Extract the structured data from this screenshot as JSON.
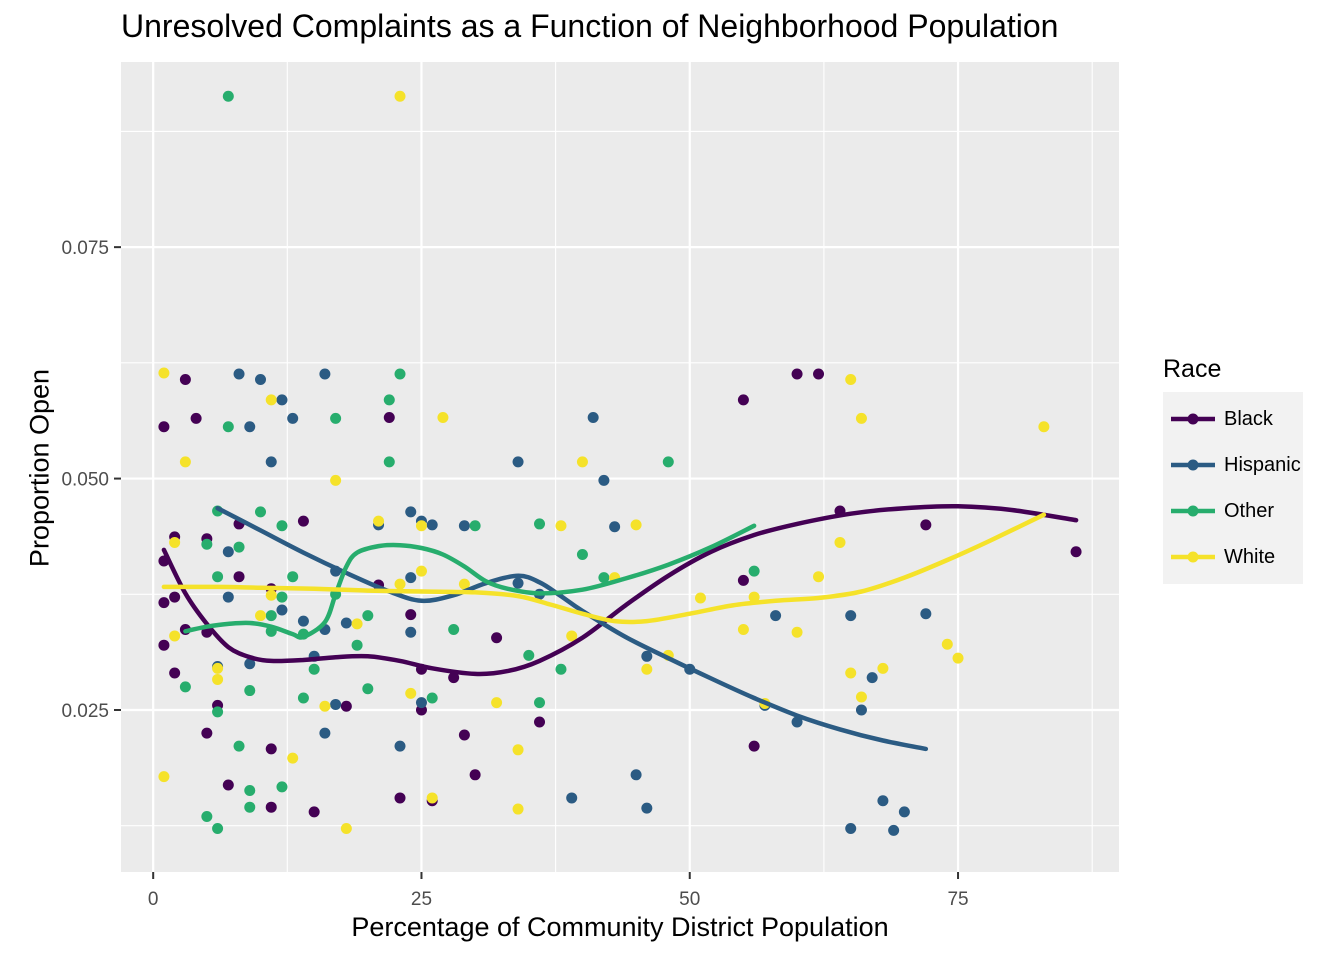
{
  "chart_data": {
    "type": "scatter",
    "title": "Unresolved Complaints as a Function of Neighborhood Population",
    "xlabel": "Percentage of Community District Population",
    "ylabel": "Proportion Open",
    "xlim": [
      -3,
      90
    ],
    "ylim": [
      0.0075,
      0.095
    ],
    "xticks": [
      0,
      25,
      50,
      75
    ],
    "xtick_labels": [
      "0",
      "25",
      "50",
      "75"
    ],
    "yticks": [
      0.025,
      0.05,
      0.075
    ],
    "ytick_labels": [
      "0.025",
      "0.050",
      "0.075"
    ],
    "grid": true,
    "legend": {
      "title": "Race",
      "position": "right"
    },
    "overlay": "smoothed trend line per series",
    "series": [
      {
        "name": "Black",
        "color": "#440154",
        "points": [
          [
            1,
            0.0556
          ],
          [
            1,
            0.0411
          ],
          [
            1,
            0.0366
          ],
          [
            1,
            0.032
          ],
          [
            2,
            0.0437
          ],
          [
            2,
            0.0372
          ],
          [
            2,
            0.029
          ],
          [
            3,
            0.0607
          ],
          [
            3,
            0.0337
          ],
          [
            4,
            0.0565
          ],
          [
            5,
            0.0435
          ],
          [
            5,
            0.0334
          ],
          [
            5,
            0.0225
          ],
          [
            6,
            0.0255
          ],
          [
            7,
            0.0169
          ],
          [
            8,
            0.0451
          ],
          [
            8,
            0.0394
          ],
          [
            11,
            0.0381
          ],
          [
            11,
            0.0208
          ],
          [
            11,
            0.0145
          ],
          [
            14,
            0.0454
          ],
          [
            15,
            0.014
          ],
          [
            18,
            0.0254
          ],
          [
            21,
            0.0385
          ],
          [
            22,
            0.0566
          ],
          [
            23,
            0.0155
          ],
          [
            24,
            0.0353
          ],
          [
            25,
            0.0294
          ],
          [
            25,
            0.025
          ],
          [
            26,
            0.0152
          ],
          [
            28,
            0.0285
          ],
          [
            29,
            0.0223
          ],
          [
            30,
            0.018
          ],
          [
            32,
            0.0328
          ],
          [
            36,
            0.0237
          ],
          [
            55,
            0.0585
          ],
          [
            55,
            0.039
          ],
          [
            56,
            0.0211
          ],
          [
            60,
            0.0613
          ],
          [
            62,
            0.0613
          ],
          [
            64,
            0.0465
          ],
          [
            72,
            0.045
          ],
          [
            86,
            0.0421
          ]
        ],
        "trend": [
          [
            1,
            0.0423
          ],
          [
            3,
            0.0376
          ],
          [
            5,
            0.0343
          ],
          [
            7,
            0.0318
          ],
          [
            9,
            0.0307
          ],
          [
            11,
            0.0303
          ],
          [
            14,
            0.0304
          ],
          [
            17,
            0.0307
          ],
          [
            20,
            0.0308
          ],
          [
            23,
            0.0303
          ],
          [
            26,
            0.0295
          ],
          [
            30,
            0.0289
          ],
          [
            33,
            0.0292
          ],
          [
            36,
            0.0303
          ],
          [
            40,
            0.0328
          ],
          [
            44,
            0.0363
          ],
          [
            48,
            0.0395
          ],
          [
            52,
            0.0421
          ],
          [
            56,
            0.0439
          ],
          [
            60,
            0.0451
          ],
          [
            65,
            0.0462
          ],
          [
            70,
            0.0468
          ],
          [
            75,
            0.047
          ],
          [
            80,
            0.0466
          ],
          [
            86,
            0.0455
          ]
        ]
      },
      {
        "name": "Hispanic",
        "color": "#2b5b83",
        "points": [
          [
            6,
            0.0297
          ],
          [
            7,
            0.0421
          ],
          [
            7,
            0.0372
          ],
          [
            8,
            0.0613
          ],
          [
            9,
            0.0556
          ],
          [
            9,
            0.03
          ],
          [
            10,
            0.0607
          ],
          [
            11,
            0.0518
          ],
          [
            12,
            0.0585
          ],
          [
            12,
            0.0358
          ],
          [
            13,
            0.0565
          ],
          [
            14,
            0.0346
          ],
          [
            15,
            0.0308
          ],
          [
            16,
            0.0613
          ],
          [
            16,
            0.0337
          ],
          [
            16,
            0.0225
          ],
          [
            17,
            0.04
          ],
          [
            17,
            0.0256
          ],
          [
            18,
            0.0344
          ],
          [
            21,
            0.045
          ],
          [
            23,
            0.0211
          ],
          [
            24,
            0.0464
          ],
          [
            24,
            0.0393
          ],
          [
            24,
            0.0334
          ],
          [
            25,
            0.0454
          ],
          [
            25,
            0.0258
          ],
          [
            26,
            0.045
          ],
          [
            29,
            0.0449
          ],
          [
            34,
            0.0518
          ],
          [
            34,
            0.0387
          ],
          [
            36,
            0.0375
          ],
          [
            39,
            0.0155
          ],
          [
            41,
            0.0566
          ],
          [
            42,
            0.0498
          ],
          [
            43,
            0.0448
          ],
          [
            45,
            0.018
          ],
          [
            46,
            0.0308
          ],
          [
            46,
            0.0144
          ],
          [
            50,
            0.0294
          ],
          [
            57,
            0.0255
          ],
          [
            58,
            0.0352
          ],
          [
            60,
            0.0237
          ],
          [
            65,
            0.0352
          ],
          [
            65,
            0.0122
          ],
          [
            66,
            0.025
          ],
          [
            67,
            0.0285
          ],
          [
            68,
            0.0152
          ],
          [
            69,
            0.012
          ],
          [
            70,
            0.014
          ],
          [
            72,
            0.0354
          ]
        ],
        "trend": [
          [
            6,
            0.0468
          ],
          [
            10,
            0.0444
          ],
          [
            14,
            0.042
          ],
          [
            18,
            0.0398
          ],
          [
            22,
            0.0378
          ],
          [
            25,
            0.0368
          ],
          [
            28,
            0.0374
          ],
          [
            31,
            0.0387
          ],
          [
            34,
            0.0395
          ],
          [
            36,
            0.0388
          ],
          [
            38,
            0.0373
          ],
          [
            40,
            0.0357
          ],
          [
            44,
            0.0329
          ],
          [
            48,
            0.0306
          ],
          [
            52,
            0.0284
          ],
          [
            56,
            0.0263
          ],
          [
            60,
            0.0244
          ],
          [
            64,
            0.0229
          ],
          [
            68,
            0.0217
          ],
          [
            72,
            0.0208
          ]
        ]
      },
      {
        "name": "Other",
        "color": "#27ad6d",
        "points": [
          [
            3,
            0.0275
          ],
          [
            5,
            0.0429
          ],
          [
            5,
            0.0135
          ],
          [
            6,
            0.0465
          ],
          [
            6,
            0.0394
          ],
          [
            6,
            0.0248
          ],
          [
            6,
            0.0122
          ],
          [
            7,
            0.0913
          ],
          [
            7,
            0.0556
          ],
          [
            8,
            0.0426
          ],
          [
            8,
            0.0211
          ],
          [
            9,
            0.0271
          ],
          [
            9,
            0.0163
          ],
          [
            9,
            0.0145
          ],
          [
            10,
            0.0464
          ],
          [
            11,
            0.0352
          ],
          [
            11,
            0.0335
          ],
          [
            12,
            0.0449
          ],
          [
            12,
            0.0372
          ],
          [
            12,
            0.0167
          ],
          [
            13,
            0.0394
          ],
          [
            14,
            0.0332
          ],
          [
            14,
            0.0263
          ],
          [
            15,
            0.0294
          ],
          [
            17,
            0.0565
          ],
          [
            17,
            0.0375
          ],
          [
            19,
            0.032
          ],
          [
            20,
            0.0352
          ],
          [
            20,
            0.0273
          ],
          [
            22,
            0.0585
          ],
          [
            22,
            0.0518
          ],
          [
            23,
            0.0613
          ],
          [
            26,
            0.0263
          ],
          [
            28,
            0.0337
          ],
          [
            30,
            0.0449
          ],
          [
            35,
            0.0309
          ],
          [
            36,
            0.0451
          ],
          [
            36,
            0.0258
          ],
          [
            38,
            0.0294
          ],
          [
            40,
            0.0418
          ],
          [
            42,
            0.0393
          ],
          [
            48,
            0.0518
          ],
          [
            56,
            0.04
          ]
        ],
        "trend": [
          [
            3,
            0.0335
          ],
          [
            5,
            0.034
          ],
          [
            7,
            0.0343
          ],
          [
            9,
            0.0344
          ],
          [
            11,
            0.034
          ],
          [
            13,
            0.0332
          ],
          [
            14,
            0.0329
          ],
          [
            16,
            0.0345
          ],
          [
            17,
            0.0375
          ],
          [
            18,
            0.0405
          ],
          [
            19,
            0.042
          ],
          [
            21,
            0.0427
          ],
          [
            23,
            0.0428
          ],
          [
            25,
            0.0425
          ],
          [
            27,
            0.0418
          ],
          [
            29,
            0.0405
          ],
          [
            31,
            0.0389
          ],
          [
            33,
            0.0381
          ],
          [
            36,
            0.0376
          ],
          [
            40,
            0.038
          ],
          [
            44,
            0.0392
          ],
          [
            48,
            0.0407
          ],
          [
            52,
            0.0426
          ],
          [
            56,
            0.0449
          ]
        ]
      },
      {
        "name": "White",
        "color": "#f5e22a",
        "points": [
          [
            1,
            0.0614
          ],
          [
            1,
            0.0178
          ],
          [
            2,
            0.0431
          ],
          [
            2,
            0.033
          ],
          [
            3,
            0.0518
          ],
          [
            6,
            0.0295
          ],
          [
            6,
            0.0283
          ],
          [
            10,
            0.0352
          ],
          [
            11,
            0.0585
          ],
          [
            11,
            0.0374
          ],
          [
            13,
            0.0198
          ],
          [
            16,
            0.0254
          ],
          [
            17,
            0.0498
          ],
          [
            18,
            0.0122
          ],
          [
            19,
            0.0343
          ],
          [
            21,
            0.0454
          ],
          [
            23,
            0.0913
          ],
          [
            23,
            0.0386
          ],
          [
            24,
            0.0268
          ],
          [
            25,
            0.0449
          ],
          [
            25,
            0.04
          ],
          [
            26,
            0.0155
          ],
          [
            27,
            0.0566
          ],
          [
            29,
            0.0386
          ],
          [
            32,
            0.0258
          ],
          [
            34,
            0.0207
          ],
          [
            34,
            0.0143
          ],
          [
            38,
            0.0449
          ],
          [
            39,
            0.033
          ],
          [
            40,
            0.0518
          ],
          [
            43,
            0.0393
          ],
          [
            45,
            0.045
          ],
          [
            46,
            0.0294
          ],
          [
            48,
            0.0309
          ],
          [
            51,
            0.0371
          ],
          [
            55,
            0.0337
          ],
          [
            56,
            0.0372
          ],
          [
            57,
            0.0257
          ],
          [
            60,
            0.0334
          ],
          [
            62,
            0.0394
          ],
          [
            64,
            0.0431
          ],
          [
            65,
            0.0607
          ],
          [
            65,
            0.029
          ],
          [
            66,
            0.0565
          ],
          [
            66,
            0.0264
          ],
          [
            68,
            0.0295
          ],
          [
            74,
            0.0321
          ],
          [
            75,
            0.0306
          ],
          [
            83,
            0.0556
          ]
        ],
        "trend": [
          [
            1,
            0.0383
          ],
          [
            6,
            0.0383
          ],
          [
            10,
            0.0382
          ],
          [
            15,
            0.0381
          ],
          [
            20,
            0.0379
          ],
          [
            25,
            0.0378
          ],
          [
            30,
            0.0377
          ],
          [
            34,
            0.0373
          ],
          [
            37,
            0.0364
          ],
          [
            40,
            0.0354
          ],
          [
            43,
            0.0346
          ],
          [
            46,
            0.0346
          ],
          [
            50,
            0.0354
          ],
          [
            54,
            0.0363
          ],
          [
            58,
            0.0368
          ],
          [
            62,
            0.0371
          ],
          [
            66,
            0.0378
          ],
          [
            70,
            0.0393
          ],
          [
            74,
            0.0412
          ],
          [
            78,
            0.0433
          ],
          [
            83,
            0.0461
          ]
        ]
      }
    ]
  }
}
